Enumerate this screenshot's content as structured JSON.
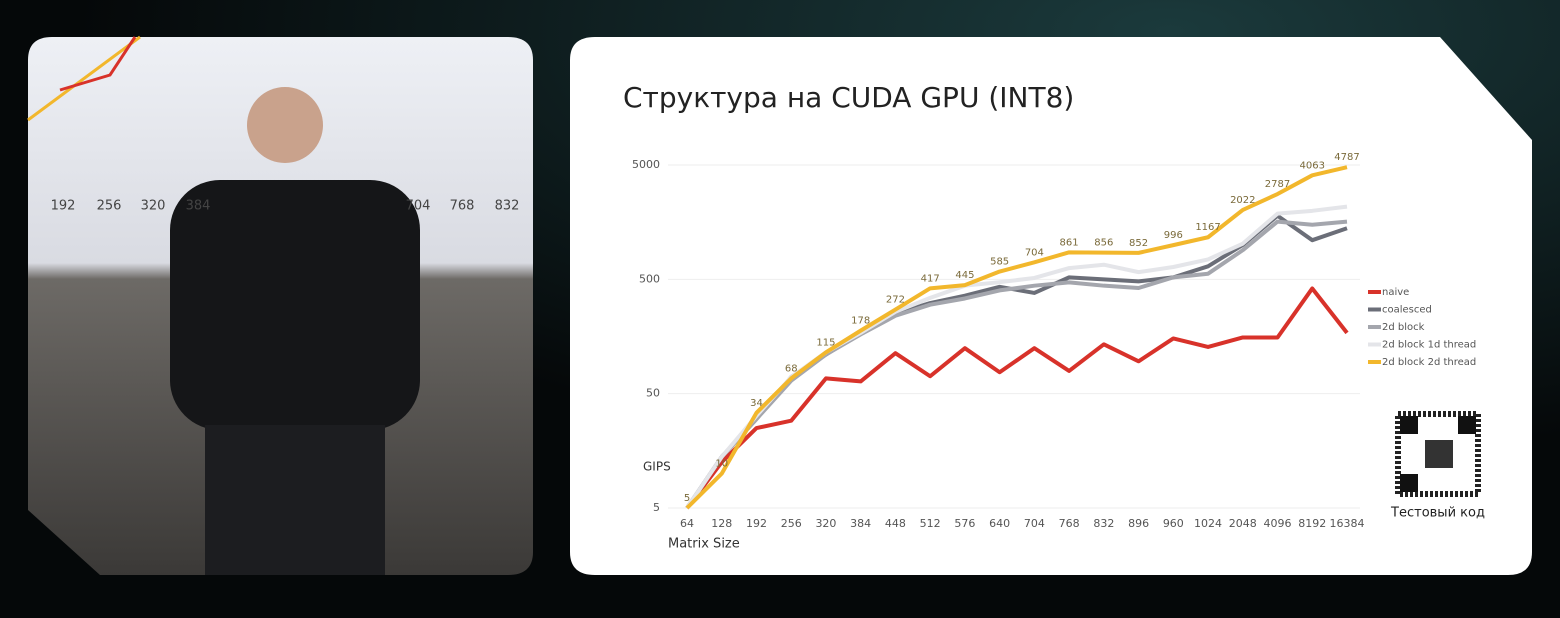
{
  "chart_data": {
    "type": "line",
    "title": "Структура на CUDA GPU (INT8)",
    "y_label": "GIPS",
    "x_label": "Matrix Size",
    "log_y": true,
    "categories": [
      "64",
      "128",
      "192",
      "256",
      "320",
      "384",
      "448",
      "512",
      "576",
      "640",
      "704",
      "768",
      "832",
      "896",
      "960",
      "1024",
      "2048",
      "4096",
      "8192",
      "16384"
    ],
    "ylim": [
      5,
      5000
    ],
    "yticks": [
      5,
      50,
      500,
      5000
    ],
    "legend": "right",
    "series": [
      {
        "name": "naive",
        "color": "#d8322a",
        "values": [
          5,
          12.6,
          25,
          29,
          68,
          64,
          113,
          71,
          125,
          77,
          125,
          79,
          135,
          96,
          152,
          128,
          155,
          155,
          416,
          170
        ]
      },
      {
        "name": "coalesced",
        "color": "#6b6e78",
        "values": [
          5,
          14,
          30,
          70,
          110,
          170,
          250,
          310,
          360,
          430,
          380,
          520,
          500,
          480,
          520,
          650,
          1000,
          1800,
          1100,
          1400
        ]
      },
      {
        "name": "2d block",
        "color": "#a4a6ad",
        "values": [
          5,
          14,
          30,
          65,
          110,
          165,
          240,
          300,
          340,
          400,
          440,
          470,
          440,
          420,
          520,
          560,
          900,
          1600,
          1500,
          1600
        ]
      },
      {
        "name": "2d block 1d thread",
        "color": "#e4e5e9",
        "values": [
          5,
          14,
          32,
          70,
          115,
          170,
          260,
          344,
          440,
          472,
          514,
          627,
          671,
          578,
          641,
          747,
          1026,
          1879,
          1987,
          2163
        ]
      },
      {
        "name": "2d block 2d thread",
        "color": "#f2b72c",
        "values": [
          5,
          10,
          34,
          68,
          115,
          178,
          272,
          417,
          445,
          585,
          704,
          861,
          856,
          852,
          996,
          1167,
          2022,
          2787,
          4063,
          4787
        ],
        "labels": true
      }
    ],
    "qr_caption": "Тестовый код"
  },
  "video": {
    "background_labels": [
      "192",
      "256",
      "320",
      "384",
      "704",
      "768",
      "832"
    ]
  }
}
